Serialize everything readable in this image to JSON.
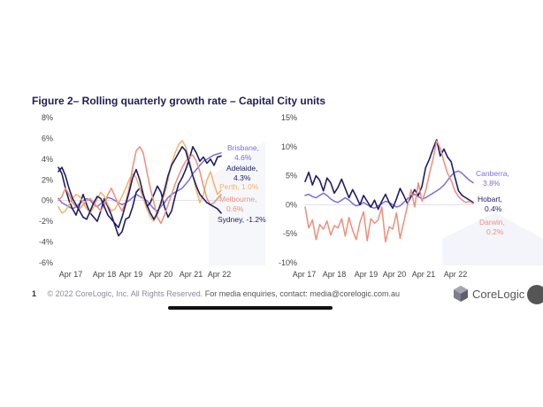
{
  "title": "Figure 2– Rolling quarterly growth rate – Capital City units",
  "footer": {
    "page_num": "1",
    "copyright": "© 2022 CoreLogic, Inc. All Rights Reserved.",
    "media": "For media enquiries, contact: media@corelogic.com.au"
  },
  "logo": {
    "text": "CoreLogic"
  },
  "colors": {
    "navy": "#1f1d66",
    "purple": "#7b6fd8",
    "peach": "#f2b36c",
    "salmon": "#ec8f7c",
    "wash": "#eef0f8"
  },
  "chart_data": [
    {
      "type": "line",
      "x_ticks": [
        "Apr 17",
        "Apr 18",
        "Apr 19",
        "Apr 20",
        "Apr 21",
        "Apr 22"
      ],
      "ylim": [
        -6,
        8
      ],
      "y_ticks": [
        "8%",
        "6%",
        "4%",
        "2%",
        "0%",
        "-2%",
        "-4%",
        "-6%"
      ],
      "series": [
        {
          "name": "Brisbane, 4.6%",
          "color": "purple",
          "values": [
            0.2,
            -0.2,
            -0.4,
            -0.6,
            -0.8,
            -0.6,
            -0.3,
            0.0,
            0.2,
            0.0,
            -0.4,
            -0.6,
            -0.3,
            0.0,
            0.3,
            0.2,
            0.0,
            -0.2,
            -0.4,
            -0.2,
            0.0,
            0.3,
            0.6,
            0.4,
            0.2,
            0.0,
            -0.4,
            -0.8,
            -1.0,
            -0.6,
            -0.2,
            0.3,
            0.6,
            0.8,
            1.0,
            1.2,
            1.6,
            2.0,
            2.6,
            3.0,
            3.4,
            3.8,
            4.0,
            4.2,
            4.4,
            4.5,
            4.6
          ]
        },
        {
          "name": "Adelaide, 4.3%",
          "color": "navy",
          "values": [
            3.2,
            2.6,
            1.2,
            0.0,
            -0.8,
            -1.4,
            -0.4,
            0.6,
            -0.4,
            -1.2,
            -1.6,
            -2.0,
            -1.0,
            0.2,
            -0.6,
            -1.4,
            -2.4,
            -3.4,
            -3.0,
            -1.8,
            -1.6,
            -0.6,
            0.8,
            1.2,
            0.4,
            -0.6,
            -0.2,
            0.6,
            1.4,
            0.8,
            -0.6,
            -1.6,
            -1.0,
            0.4,
            1.6,
            2.2,
            3.0,
            4.0,
            5.2,
            4.6,
            3.8,
            4.2,
            3.6,
            4.0,
            3.4,
            4.2,
            4.3
          ]
        },
        {
          "name": "Perth, 1.0%",
          "color": "peach",
          "values": [
            -0.6,
            -1.2,
            -1.0,
            -0.4,
            0.2,
            0.6,
            0.4,
            -0.2,
            -0.8,
            -1.2,
            -0.6,
            0.2,
            0.8,
            0.4,
            -0.4,
            -1.0,
            -0.8,
            -0.2,
            0.4,
            1.2,
            2.0,
            2.6,
            2.2,
            1.2,
            0.2,
            -0.8,
            -1.6,
            -2.0,
            -1.2,
            -0.4,
            0.6,
            2.0,
            3.6,
            4.6,
            5.4,
            5.8,
            5.2,
            4.0,
            2.4,
            1.0,
            -0.2,
            0.6,
            2.0,
            2.8,
            1.6,
            0.6,
            1.0
          ]
        },
        {
          "name": "Melbourne, 0.6%",
          "color": "salmon",
          "values": [
            0.0,
            0.4,
            1.2,
            0.6,
            -0.2,
            -0.6,
            -0.8,
            -0.4,
            0.0,
            0.2,
            -0.2,
            -0.6,
            -1.0,
            -0.4,
            0.6,
            1.2,
            0.4,
            -0.4,
            -1.0,
            -0.2,
            1.2,
            3.2,
            4.8,
            5.2,
            4.6,
            2.8,
            1.2,
            -0.2,
            -1.6,
            -2.2,
            -1.4,
            -0.4,
            0.6,
            1.6,
            2.4,
            3.2,
            3.8,
            4.2,
            4.4,
            3.8,
            2.8,
            1.4,
            0.2,
            -0.4,
            -0.2,
            0.2,
            0.6
          ]
        },
        {
          "name": "Sydney, -1.2%",
          "color": "navy",
          "values": [
            2.8,
            3.2,
            2.4,
            1.2,
            0.2,
            -0.4,
            -1.0,
            -1.6,
            -1.8,
            -1.0,
            -0.2,
            0.4,
            0.2,
            -0.6,
            -1.4,
            -1.8,
            -2.2,
            -2.6,
            -1.6,
            -0.4,
            0.8,
            2.2,
            3.0,
            2.0,
            0.6,
            -0.4,
            -1.2,
            -1.8,
            -1.2,
            -0.2,
            1.0,
            2.4,
            3.4,
            4.0,
            4.6,
            5.2,
            4.8,
            3.6,
            2.4,
            1.4,
            0.6,
            0.2,
            -0.2,
            -0.4,
            -0.6,
            -0.8,
            -1.2
          ]
        }
      ]
    },
    {
      "type": "line",
      "x_ticks": [
        "Apr 17",
        "Apr 18",
        "Apr 19",
        "Apr 20",
        "Apr 21",
        "Apr 22"
      ],
      "ylim": [
        -10,
        15
      ],
      "y_ticks": [
        "15%",
        "10%",
        "5%",
        "0%",
        "-5%",
        "-10%"
      ],
      "series": [
        {
          "name": "Canberra, 3.8%",
          "color": "purple",
          "values": [
            1.6,
            1.8,
            1.4,
            1.2,
            1.6,
            2.0,
            1.6,
            1.0,
            0.6,
            0.4,
            0.8,
            1.2,
            0.8,
            0.2,
            -0.2,
            0.0,
            0.4,
            0.0,
            -0.4,
            -0.6,
            -0.2,
            0.2,
            0.6,
            0.4,
            0.0,
            -0.4,
            -0.2,
            0.4,
            1.0,
            1.6,
            1.8,
            1.4,
            1.0,
            1.2,
            1.6,
            2.0,
            2.4,
            2.8,
            3.4,
            4.2,
            5.0,
            5.6,
            5.8,
            5.4,
            4.8,
            4.2,
            3.8
          ]
        },
        {
          "name": "Hobart, 0.4%",
          "color": "navy",
          "values": [
            4.0,
            5.6,
            3.4,
            5.0,
            4.2,
            2.4,
            4.6,
            3.8,
            2.0,
            3.0,
            4.4,
            2.8,
            1.2,
            2.6,
            1.4,
            0.0,
            1.6,
            0.6,
            -0.4,
            0.8,
            -0.8,
            0.6,
            1.8,
            0.4,
            -0.6,
            1.0,
            2.8,
            1.6,
            0.2,
            1.4,
            2.6,
            1.6,
            3.2,
            6.4,
            7.8,
            9.6,
            11.2,
            8.4,
            9.6,
            8.2,
            7.4,
            4.8,
            2.4,
            1.6,
            1.2,
            0.8,
            0.4
          ]
        },
        {
          "name": "Darwin, 0.2%",
          "color": "salmon",
          "values": [
            -0.4,
            -4.0,
            -2.6,
            -6.0,
            -3.4,
            -4.2,
            -2.8,
            -5.2,
            -3.6,
            -4.0,
            -2.4,
            -5.4,
            -2.2,
            -4.4,
            -6.0,
            -3.0,
            -1.2,
            -6.2,
            -2.4,
            -3.2,
            -2.6,
            -0.4,
            -6.4,
            -3.8,
            -4.2,
            -1.4,
            -5.8,
            -3.0,
            -0.2,
            2.6,
            -0.4,
            3.8,
            0.6,
            2.4,
            5.2,
            7.8,
            11.0,
            9.8,
            7.4,
            5.4,
            4.2,
            2.4,
            1.4,
            0.8,
            0.4,
            0.6,
            0.2
          ]
        }
      ]
    }
  ]
}
